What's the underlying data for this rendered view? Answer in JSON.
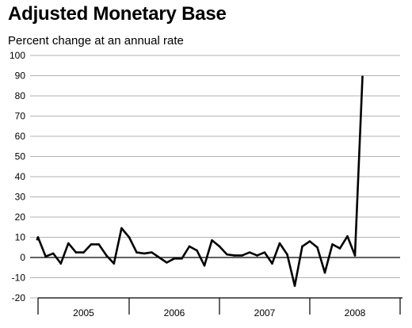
{
  "chart_data": {
    "type": "line",
    "title": "Adjusted Monetary Base",
    "subtitle": "Percent change at an annual rate",
    "xlabel": "",
    "ylabel": "",
    "ylim": [
      -20,
      100
    ],
    "y_ticks": [
      -20,
      -10,
      0,
      10,
      20,
      30,
      40,
      50,
      60,
      70,
      80,
      90,
      100
    ],
    "year_labels": [
      "2005",
      "2006",
      "2007",
      "2008"
    ],
    "x_start": "2004-12",
    "x_end": "2008-10",
    "grid": true,
    "series": [
      {
        "color": "#000000",
        "values": [
          9.0,
          10.0,
          0.5,
          2.0,
          -3.0,
          7.0,
          2.5,
          2.5,
          6.5,
          6.5,
          1.0,
          -3.0,
          14.5,
          10.0,
          2.5,
          2.0,
          2.5,
          0.0,
          -2.5,
          -0.5,
          -0.5,
          5.5,
          3.5,
          -4.0,
          8.5,
          5.5,
          1.5,
          1.0,
          1.0,
          2.5,
          1.0,
          2.5,
          -3.0,
          7.0,
          1.5,
          -14.0,
          5.5,
          8.0,
          5.0,
          -7.5,
          6.5,
          4.5,
          10.5,
          1.0,
          89.5
        ]
      }
    ]
  }
}
